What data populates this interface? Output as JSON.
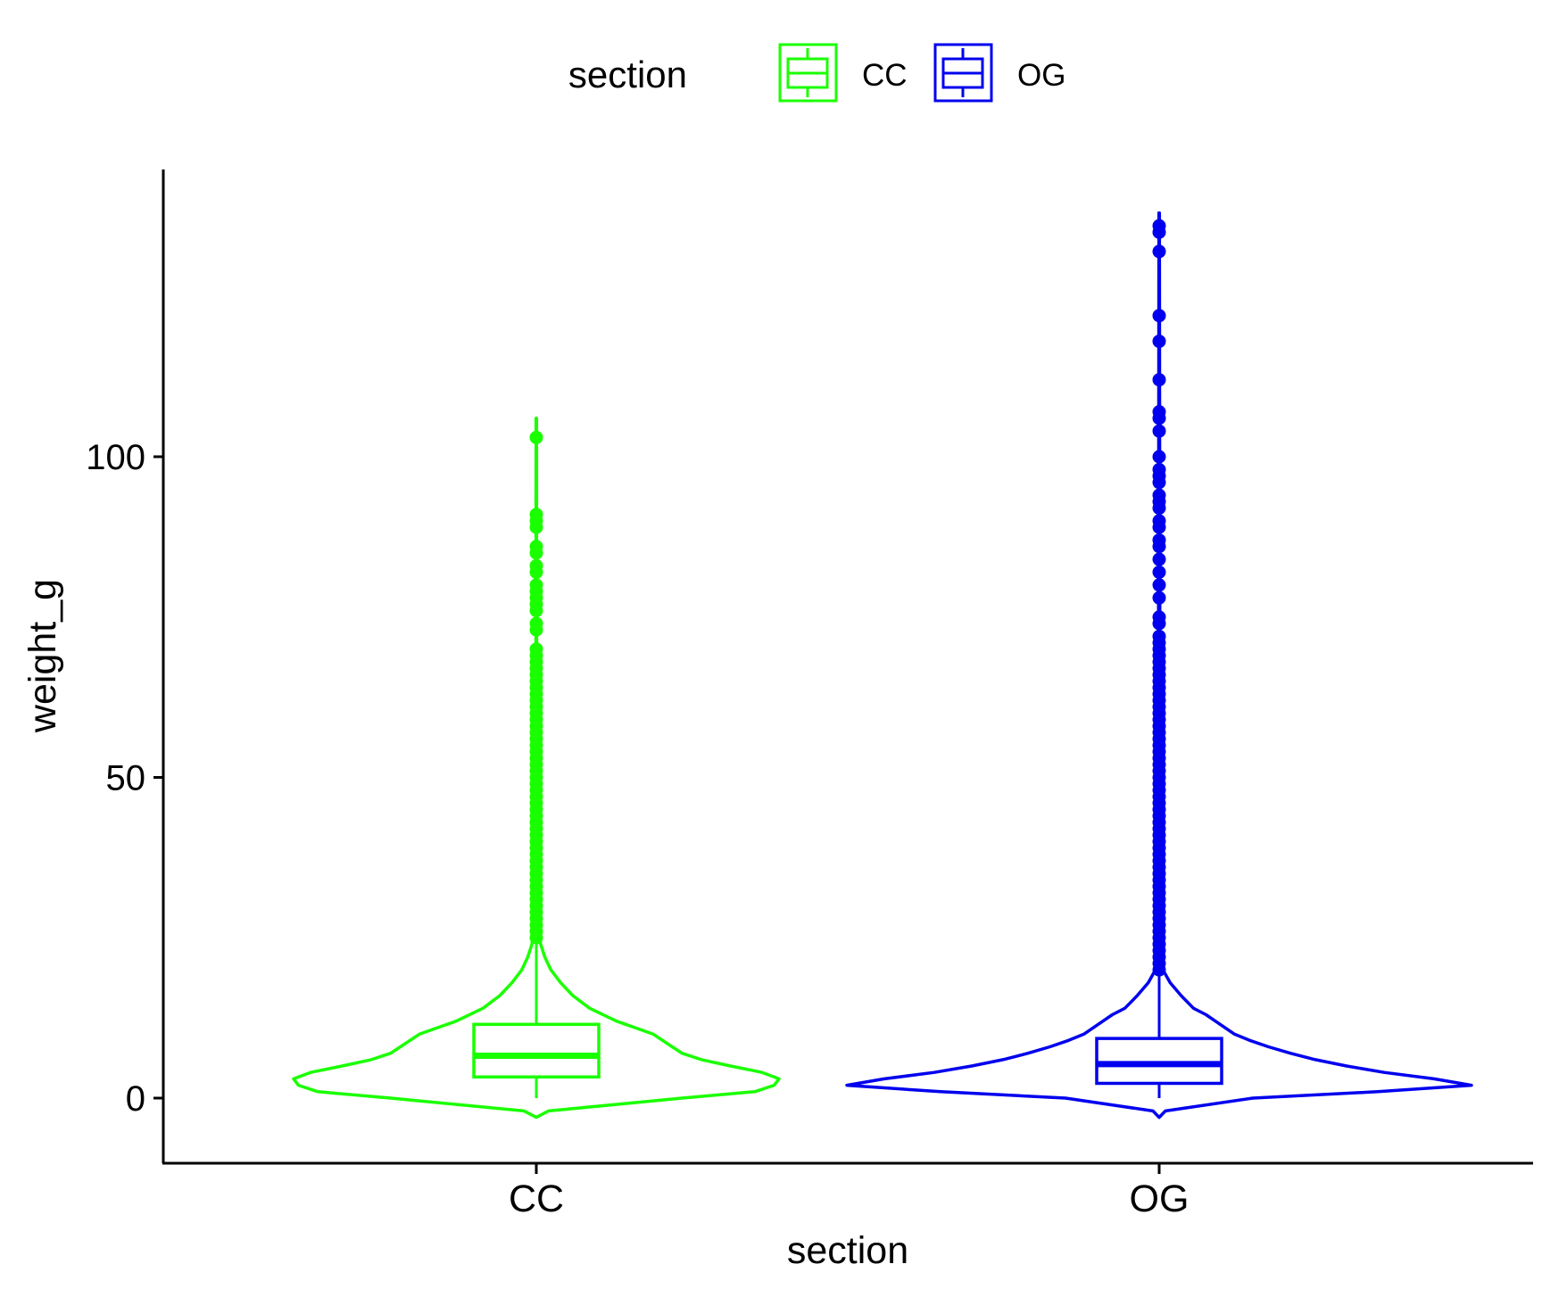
{
  "chart_data": {
    "type": "violin",
    "xlabel": "section",
    "ylabel": "weight_g",
    "categories": [
      "CC",
      "OG"
    ],
    "yticks": [
      0,
      50,
      100
    ],
    "ylim": [
      -10,
      145
    ],
    "grid": false,
    "legend": {
      "title": "section",
      "position": "top",
      "entries": [
        {
          "label": "CC",
          "color": "#1aff00"
        },
        {
          "label": "OG",
          "color": "#0000ee"
        }
      ]
    },
    "series": [
      {
        "name": "CC",
        "color": "#1aff00",
        "box": {
          "whisker_low": 0,
          "q1": 3.3,
          "median": 6.6,
          "q3": 11.5,
          "whisker_high": 24
        },
        "violin_range": [
          -3,
          106
        ],
        "violin_profile": [
          [
            -3,
            0
          ],
          [
            -2,
            0.05
          ],
          [
            0,
            0.6
          ],
          [
            1,
            0.9
          ],
          [
            2,
            0.98
          ],
          [
            3,
            1.0
          ],
          [
            4,
            0.93
          ],
          [
            5,
            0.8
          ],
          [
            6,
            0.68
          ],
          [
            7,
            0.6
          ],
          [
            8,
            0.56
          ],
          [
            10,
            0.48
          ],
          [
            12,
            0.33
          ],
          [
            14,
            0.22
          ],
          [
            16,
            0.15
          ],
          [
            18,
            0.1
          ],
          [
            19,
            0.08
          ],
          [
            20,
            0.06
          ],
          [
            22,
            0.035
          ],
          [
            24,
            0.018
          ],
          [
            26,
            0.01
          ],
          [
            30,
            0.005
          ],
          [
            40,
            0.003
          ],
          [
            60,
            0.002
          ],
          [
            80,
            0.0015
          ],
          [
            106,
            0.001
          ]
        ],
        "outliers": [
          25,
          26,
          27,
          28,
          29,
          30,
          31,
          32,
          33,
          34,
          35,
          36,
          37,
          38,
          39,
          40,
          41,
          42,
          43,
          44,
          45,
          46,
          47,
          48,
          49,
          50,
          51,
          52,
          53,
          54,
          55,
          56,
          57,
          58,
          59,
          60,
          61,
          62,
          63,
          64,
          65,
          66,
          67,
          68,
          69,
          70,
          73,
          74,
          76,
          77,
          78,
          79,
          80,
          82,
          83,
          85,
          86,
          89,
          90,
          91,
          103
        ]
      },
      {
        "name": "OG",
        "color": "#0000ee",
        "box": {
          "whisker_low": 0,
          "q1": 2.3,
          "median": 5.3,
          "q3": 9.3,
          "whisker_high": 20
        },
        "violin_range": [
          -3,
          138
        ],
        "violin_profile": [
          [
            -3,
            0
          ],
          [
            -2,
            0.02
          ],
          [
            0,
            0.3
          ],
          [
            1,
            0.7
          ],
          [
            2,
            1.0
          ],
          [
            3,
            0.88
          ],
          [
            4,
            0.72
          ],
          [
            5,
            0.6
          ],
          [
            6,
            0.5
          ],
          [
            7,
            0.42
          ],
          [
            8,
            0.35
          ],
          [
            9,
            0.29
          ],
          [
            10,
            0.24
          ],
          [
            12,
            0.18
          ],
          [
            13,
            0.15
          ],
          [
            14,
            0.11
          ],
          [
            16,
            0.07
          ],
          [
            18,
            0.035
          ],
          [
            20,
            0.012
          ],
          [
            22,
            0.006
          ],
          [
            30,
            0.004
          ],
          [
            50,
            0.003
          ],
          [
            80,
            0.002
          ],
          [
            110,
            0.0015
          ],
          [
            138,
            0.001
          ]
        ],
        "outliers": [
          20,
          21,
          22,
          23,
          24,
          25,
          26,
          27,
          28,
          29,
          30,
          31,
          32,
          33,
          34,
          35,
          36,
          37,
          38,
          39,
          40,
          41,
          42,
          43,
          44,
          45,
          46,
          47,
          48,
          49,
          50,
          51,
          52,
          53,
          54,
          55,
          56,
          57,
          58,
          59,
          60,
          61,
          62,
          63,
          64,
          65,
          66,
          67,
          68,
          69,
          70,
          71,
          72,
          74,
          75,
          78,
          80,
          82,
          84,
          86,
          87,
          89,
          90,
          92,
          93,
          94,
          96,
          97,
          98,
          100,
          104,
          106,
          107,
          112,
          118,
          122,
          132,
          135,
          136
        ]
      }
    ]
  }
}
